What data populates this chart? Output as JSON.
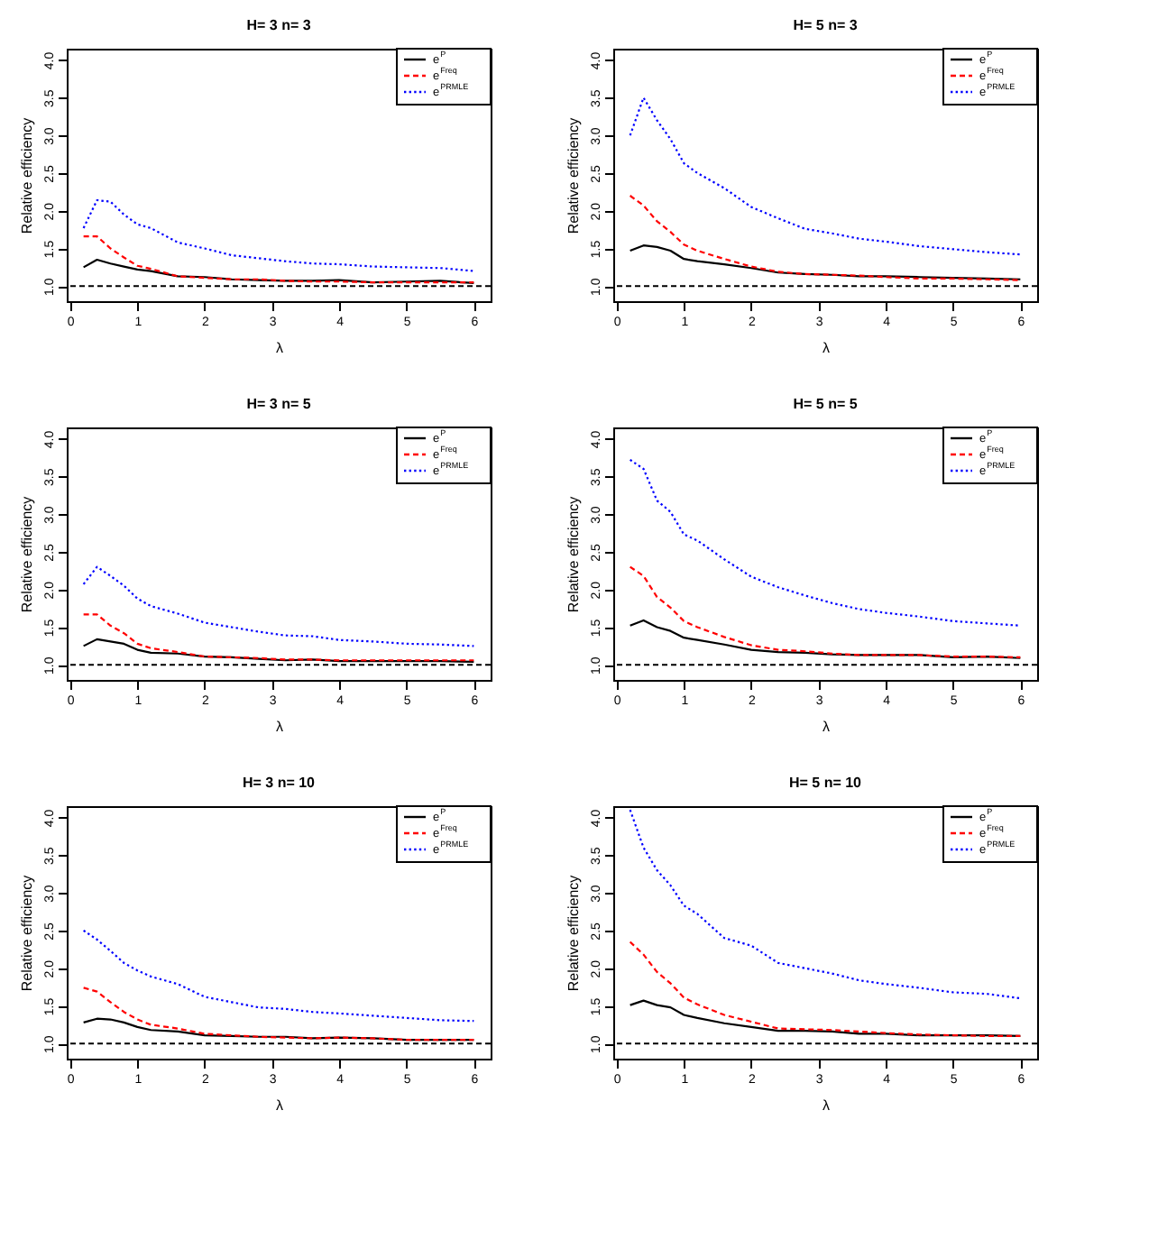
{
  "chart_data": [
    {
      "type": "line",
      "title": "H= 3   n= 3",
      "xlabel": "λ",
      "ylabel": "Relative efficiency",
      "legend": "top right",
      "x": [
        0.2,
        0.4,
        0.6,
        0.8,
        1.0,
        1.2,
        1.6,
        2.0,
        2.4,
        2.8,
        3.2,
        3.6,
        4.0,
        4.5,
        5.0,
        5.5,
        6.0
      ],
      "xlim": [
        -0.05,
        6.25
      ],
      "xticks": [
        0,
        1,
        2,
        3,
        4,
        5,
        6
      ],
      "ylim": [
        0.8,
        4.15
      ],
      "yticks": [
        {
          "value": 1,
          "label": "1.0"
        },
        {
          "value": 1.5,
          "label": "1.5"
        },
        {
          "value": 2,
          "label": "2.0"
        },
        {
          "value": 2.5,
          "label": "2.5"
        },
        {
          "value": 3,
          "label": "3.0"
        },
        {
          "value": 3.5,
          "label": "3.5"
        },
        {
          "value": 4,
          "label": "4.0"
        }
      ],
      "ref_lines": [
        {
          "axis": "y",
          "value": 1,
          "color": "#000000",
          "line_style": "dashed"
        }
      ],
      "series": [
        {
          "name": "e$^{P}$",
          "color": "#000000",
          "line_style": "solid",
          "values": [
            1.25,
            1.35,
            1.3,
            1.26,
            1.22,
            1.2,
            1.13,
            1.12,
            1.09,
            1.08,
            1.07,
            1.07,
            1.08,
            1.05,
            1.06,
            1.07,
            1.04
          ]
        },
        {
          "name": "e$^{Freq}$",
          "color": "#ff0000",
          "line_style": "dashed",
          "values": [
            1.66,
            1.66,
            1.5,
            1.38,
            1.27,
            1.23,
            1.13,
            1.11,
            1.09,
            1.09,
            1.07,
            1.06,
            1.06,
            1.05,
            1.05,
            1.05,
            1.05
          ]
        },
        {
          "name": "e$^{PRMLE}$",
          "color": "#0000ff",
          "line_style": "dotted",
          "values": [
            1.77,
            2.14,
            2.12,
            1.95,
            1.82,
            1.77,
            1.58,
            1.5,
            1.41,
            1.37,
            1.33,
            1.3,
            1.29,
            1.26,
            1.25,
            1.24,
            1.2
          ]
        }
      ]
    },
    {
      "type": "line",
      "title": "H= 5   n= 3",
      "xlabel": "λ",
      "ylabel": "Relative efficiency",
      "legend": "top right",
      "x": [
        0.2,
        0.4,
        0.6,
        0.8,
        1.0,
        1.2,
        1.6,
        2.0,
        2.4,
        2.8,
        3.2,
        3.6,
        4.0,
        4.5,
        5.0,
        5.5,
        6.0
      ],
      "xlim": [
        -0.05,
        6.25
      ],
      "xticks": [
        0,
        1,
        2,
        3,
        4,
        5,
        6
      ],
      "ylim": [
        0.8,
        4.15
      ],
      "yticks": [
        {
          "value": 1,
          "label": "1.0"
        },
        {
          "value": 1.5,
          "label": "1.5"
        },
        {
          "value": 2,
          "label": "2.0"
        },
        {
          "value": 2.5,
          "label": "2.5"
        },
        {
          "value": 3,
          "label": "3.0"
        },
        {
          "value": 3.5,
          "label": "3.5"
        },
        {
          "value": 4,
          "label": "4.0"
        }
      ],
      "ref_lines": [
        {
          "axis": "y",
          "value": 1,
          "color": "#000000",
          "line_style": "dashed"
        }
      ],
      "series": [
        {
          "name": "e$^{P}$",
          "color": "#000000",
          "line_style": "solid",
          "values": [
            1.47,
            1.54,
            1.52,
            1.47,
            1.36,
            1.33,
            1.29,
            1.24,
            1.18,
            1.16,
            1.15,
            1.13,
            1.13,
            1.12,
            1.11,
            1.1,
            1.09
          ]
        },
        {
          "name": "e$^{Freq}$",
          "color": "#ff0000",
          "line_style": "dashed",
          "values": [
            2.2,
            2.07,
            1.86,
            1.72,
            1.55,
            1.47,
            1.36,
            1.26,
            1.19,
            1.16,
            1.15,
            1.14,
            1.12,
            1.1,
            1.1,
            1.09,
            1.08
          ]
        },
        {
          "name": "e$^{PRMLE}$",
          "color": "#0000ff",
          "line_style": "dotted",
          "values": [
            3.0,
            3.5,
            3.2,
            2.95,
            2.63,
            2.5,
            2.3,
            2.05,
            1.9,
            1.76,
            1.7,
            1.63,
            1.59,
            1.53,
            1.49,
            1.45,
            1.42
          ]
        }
      ]
    },
    {
      "type": "line",
      "title": "H= 3   n= 5",
      "xlabel": "λ",
      "ylabel": "Relative efficiency",
      "legend": "top right",
      "x": [
        0.2,
        0.4,
        0.6,
        0.8,
        1.0,
        1.2,
        1.6,
        2.0,
        2.4,
        2.8,
        3.2,
        3.6,
        4.0,
        4.5,
        5.0,
        5.5,
        6.0
      ],
      "xlim": [
        -0.05,
        6.25
      ],
      "xticks": [
        0,
        1,
        2,
        3,
        4,
        5,
        6
      ],
      "ylim": [
        0.8,
        4.15
      ],
      "yticks": [
        {
          "value": 1,
          "label": "1.0"
        },
        {
          "value": 1.5,
          "label": "1.5"
        },
        {
          "value": 2,
          "label": "2.0"
        },
        {
          "value": 2.5,
          "label": "2.5"
        },
        {
          "value": 3,
          "label": "3.0"
        },
        {
          "value": 3.5,
          "label": "3.5"
        },
        {
          "value": 4,
          "label": "4.0"
        }
      ],
      "ref_lines": [
        {
          "axis": "y",
          "value": 1,
          "color": "#000000",
          "line_style": "dashed"
        }
      ],
      "series": [
        {
          "name": "e$^{P}$",
          "color": "#000000",
          "line_style": "solid",
          "values": [
            1.25,
            1.34,
            1.31,
            1.28,
            1.2,
            1.16,
            1.15,
            1.11,
            1.1,
            1.08,
            1.06,
            1.07,
            1.05,
            1.05,
            1.05,
            1.05,
            1.04
          ]
        },
        {
          "name": "e$^{Freq}$",
          "color": "#ff0000",
          "line_style": "dashed",
          "values": [
            1.67,
            1.67,
            1.52,
            1.42,
            1.28,
            1.22,
            1.17,
            1.11,
            1.1,
            1.09,
            1.07,
            1.07,
            1.06,
            1.06,
            1.06,
            1.06,
            1.06
          ]
        },
        {
          "name": "e$^{PRMLE}$",
          "color": "#0000ff",
          "line_style": "dotted",
          "values": [
            2.07,
            2.3,
            2.18,
            2.05,
            1.88,
            1.78,
            1.68,
            1.56,
            1.5,
            1.44,
            1.39,
            1.38,
            1.33,
            1.31,
            1.28,
            1.27,
            1.25
          ]
        }
      ]
    },
    {
      "type": "line",
      "title": "H= 5   n= 5",
      "xlabel": "λ",
      "ylabel": "Relative efficiency",
      "legend": "top right",
      "x": [
        0.2,
        0.4,
        0.6,
        0.8,
        1.0,
        1.2,
        1.6,
        2.0,
        2.4,
        2.8,
        3.2,
        3.6,
        4.0,
        4.5,
        5.0,
        5.5,
        6.0
      ],
      "xlim": [
        -0.05,
        6.25
      ],
      "xticks": [
        0,
        1,
        2,
        3,
        4,
        5,
        6
      ],
      "ylim": [
        0.8,
        4.15
      ],
      "yticks": [
        {
          "value": 1,
          "label": "1.0"
        },
        {
          "value": 1.5,
          "label": "1.5"
        },
        {
          "value": 2,
          "label": "2.0"
        },
        {
          "value": 2.5,
          "label": "2.5"
        },
        {
          "value": 3,
          "label": "3.0"
        },
        {
          "value": 3.5,
          "label": "3.5"
        },
        {
          "value": 4,
          "label": "4.0"
        }
      ],
      "ref_lines": [
        {
          "axis": "y",
          "value": 1,
          "color": "#000000",
          "line_style": "dashed"
        }
      ],
      "series": [
        {
          "name": "e$^{P}$",
          "color": "#000000",
          "line_style": "solid",
          "values": [
            1.52,
            1.59,
            1.5,
            1.45,
            1.36,
            1.33,
            1.27,
            1.2,
            1.17,
            1.16,
            1.14,
            1.13,
            1.13,
            1.13,
            1.1,
            1.11,
            1.09
          ]
        },
        {
          "name": "e$^{Freq}$",
          "color": "#ff0000",
          "line_style": "dashed",
          "values": [
            2.3,
            2.18,
            1.9,
            1.76,
            1.58,
            1.5,
            1.37,
            1.26,
            1.2,
            1.18,
            1.15,
            1.13,
            1.13,
            1.13,
            1.11,
            1.11,
            1.1
          ]
        },
        {
          "name": "e$^{PRMLE}$",
          "color": "#0000ff",
          "line_style": "dotted",
          "values": [
            3.72,
            3.6,
            3.18,
            3.03,
            2.73,
            2.65,
            2.4,
            2.17,
            2.03,
            1.92,
            1.82,
            1.74,
            1.69,
            1.64,
            1.58,
            1.55,
            1.52
          ]
        }
      ]
    },
    {
      "type": "line",
      "title": "H= 3   n= 10",
      "xlabel": "λ",
      "ylabel": "Relative efficiency",
      "legend": "top right",
      "x": [
        0.2,
        0.4,
        0.6,
        0.8,
        1.0,
        1.2,
        1.6,
        2.0,
        2.4,
        2.8,
        3.2,
        3.6,
        4.0,
        4.5,
        5.0,
        5.5,
        6.0
      ],
      "xlim": [
        -0.05,
        6.25
      ],
      "xticks": [
        0,
        1,
        2,
        3,
        4,
        5,
        6
      ],
      "ylim": [
        0.8,
        4.15
      ],
      "yticks": [
        {
          "value": 1,
          "label": "1.0"
        },
        {
          "value": 1.5,
          "label": "1.5"
        },
        {
          "value": 2,
          "label": "2.0"
        },
        {
          "value": 2.5,
          "label": "2.5"
        },
        {
          "value": 3,
          "label": "3.0"
        },
        {
          "value": 3.5,
          "label": "3.5"
        },
        {
          "value": 4,
          "label": "4.0"
        }
      ],
      "ref_lines": [
        {
          "axis": "y",
          "value": 1,
          "color": "#000000",
          "line_style": "dashed"
        }
      ],
      "series": [
        {
          "name": "e$^{P}$",
          "color": "#000000",
          "line_style": "solid",
          "values": [
            1.28,
            1.33,
            1.32,
            1.28,
            1.22,
            1.18,
            1.16,
            1.11,
            1.1,
            1.09,
            1.09,
            1.07,
            1.08,
            1.07,
            1.05,
            1.05,
            1.05
          ]
        },
        {
          "name": "e$^{Freq}$",
          "color": "#ff0000",
          "line_style": "dashed",
          "values": [
            1.74,
            1.69,
            1.55,
            1.42,
            1.32,
            1.25,
            1.2,
            1.13,
            1.11,
            1.09,
            1.08,
            1.07,
            1.08,
            1.07,
            1.05,
            1.05,
            1.05
          ]
        },
        {
          "name": "e$^{PRMLE}$",
          "color": "#0000ff",
          "line_style": "dotted",
          "values": [
            2.5,
            2.38,
            2.23,
            2.07,
            1.97,
            1.89,
            1.79,
            1.62,
            1.55,
            1.48,
            1.46,
            1.42,
            1.4,
            1.37,
            1.34,
            1.31,
            1.3
          ]
        }
      ]
    },
    {
      "type": "line",
      "title": "H= 5   n= 10",
      "xlabel": "λ",
      "ylabel": "Relative efficiency",
      "legend": "top right",
      "x": [
        0.2,
        0.4,
        0.6,
        0.8,
        1.0,
        1.2,
        1.6,
        2.0,
        2.4,
        2.8,
        3.2,
        3.6,
        4.0,
        4.5,
        5.0,
        5.5,
        6.0
      ],
      "xlim": [
        -0.05,
        6.25
      ],
      "xticks": [
        0,
        1,
        2,
        3,
        4,
        5,
        6
      ],
      "ylim": [
        0.8,
        4.15
      ],
      "yticks": [
        {
          "value": 1,
          "label": "1.0"
        },
        {
          "value": 1.5,
          "label": "1.5"
        },
        {
          "value": 2,
          "label": "2.0"
        },
        {
          "value": 2.5,
          "label": "2.5"
        },
        {
          "value": 3,
          "label": "3.0"
        },
        {
          "value": 3.5,
          "label": "3.5"
        },
        {
          "value": 4,
          "label": "4.0"
        }
      ],
      "ref_lines": [
        {
          "axis": "y",
          "value": 1,
          "color": "#000000",
          "line_style": "dashed"
        }
      ],
      "series": [
        {
          "name": "e$^{P}$",
          "color": "#000000",
          "line_style": "solid",
          "values": [
            1.51,
            1.57,
            1.51,
            1.48,
            1.38,
            1.34,
            1.27,
            1.22,
            1.17,
            1.17,
            1.16,
            1.13,
            1.13,
            1.11,
            1.11,
            1.11,
            1.1
          ]
        },
        {
          "name": "e$^{Freq}$",
          "color": "#ff0000",
          "line_style": "dashed",
          "values": [
            2.35,
            2.18,
            1.95,
            1.8,
            1.61,
            1.52,
            1.38,
            1.29,
            1.2,
            1.19,
            1.18,
            1.16,
            1.14,
            1.12,
            1.11,
            1.1,
            1.1
          ]
        },
        {
          "name": "e$^{PRMLE}$",
          "color": "#0000ff",
          "line_style": "dotted",
          "values": [
            4.1,
            3.6,
            3.3,
            3.1,
            2.83,
            2.72,
            2.4,
            2.3,
            2.07,
            2.0,
            1.93,
            1.84,
            1.79,
            1.74,
            1.68,
            1.66,
            1.6
          ]
        }
      ]
    }
  ]
}
